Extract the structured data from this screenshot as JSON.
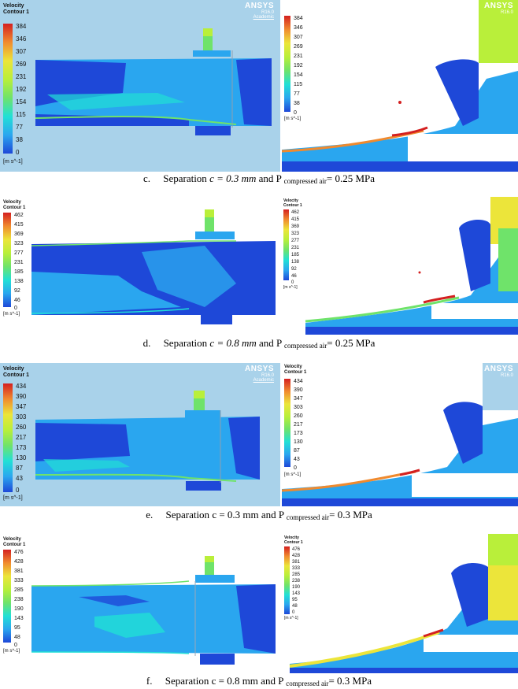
{
  "colors": {
    "dark_blue": "#1e48d8",
    "mid_blue": "#2aa6ef",
    "light_blue": "#5fd3f5",
    "cyan": "#21e0d6",
    "green": "#6fe36a",
    "lime": "#b9ef3a",
    "yellow": "#ece53a",
    "orange": "#f08a2e",
    "red": "#d42020"
  },
  "legend_title": "Velocity\nContour 1",
  "legend_unit": "[m s^-1]",
  "ansys": {
    "brand": "ANSYS",
    "version": "R16.0",
    "edition": "Academic"
  },
  "figures": [
    {
      "id": "c",
      "ticks": [
        "384",
        "346",
        "307",
        "269",
        "231",
        "192",
        "154",
        "115",
        "77",
        "38",
        "0"
      ],
      "caption": {
        "prefix": "c.",
        "text": "Separation ",
        "var": "c = 0.3 mm",
        "mid": " and P ",
        "sub": "compressed air",
        "end": "= 0.25 MPa"
      }
    },
    {
      "id": "d",
      "ticks": [
        "462",
        "415",
        "369",
        "323",
        "277",
        "231",
        "185",
        "138",
        "92",
        "46",
        "0"
      ],
      "caption": {
        "prefix": "d.",
        "text": "Separation ",
        "var": "c = 0.8 mm",
        "mid": " and P ",
        "sub": "compressed air",
        "end": "= 0.25 MPa"
      }
    },
    {
      "id": "e",
      "ticks": [
        "434",
        "390",
        "347",
        "303",
        "260",
        "217",
        "173",
        "130",
        "87",
        "43",
        "0"
      ],
      "caption": {
        "prefix": "e.",
        "text": "Separation ",
        "var": "c = 0.3 mm",
        "mid": " and P ",
        "sub": "compressed air",
        "end": "= 0.3 MPa"
      }
    },
    {
      "id": "f",
      "ticks": [
        "476",
        "428",
        "381",
        "333",
        "285",
        "238",
        "190",
        "143",
        "95",
        "48",
        "0"
      ],
      "caption": {
        "prefix": "f.",
        "text": "Separation ",
        "var": "c = 0.8 mm",
        "mid": " and P ",
        "sub": "compressed air",
        "end": "= 0.3 MPa"
      }
    }
  ]
}
